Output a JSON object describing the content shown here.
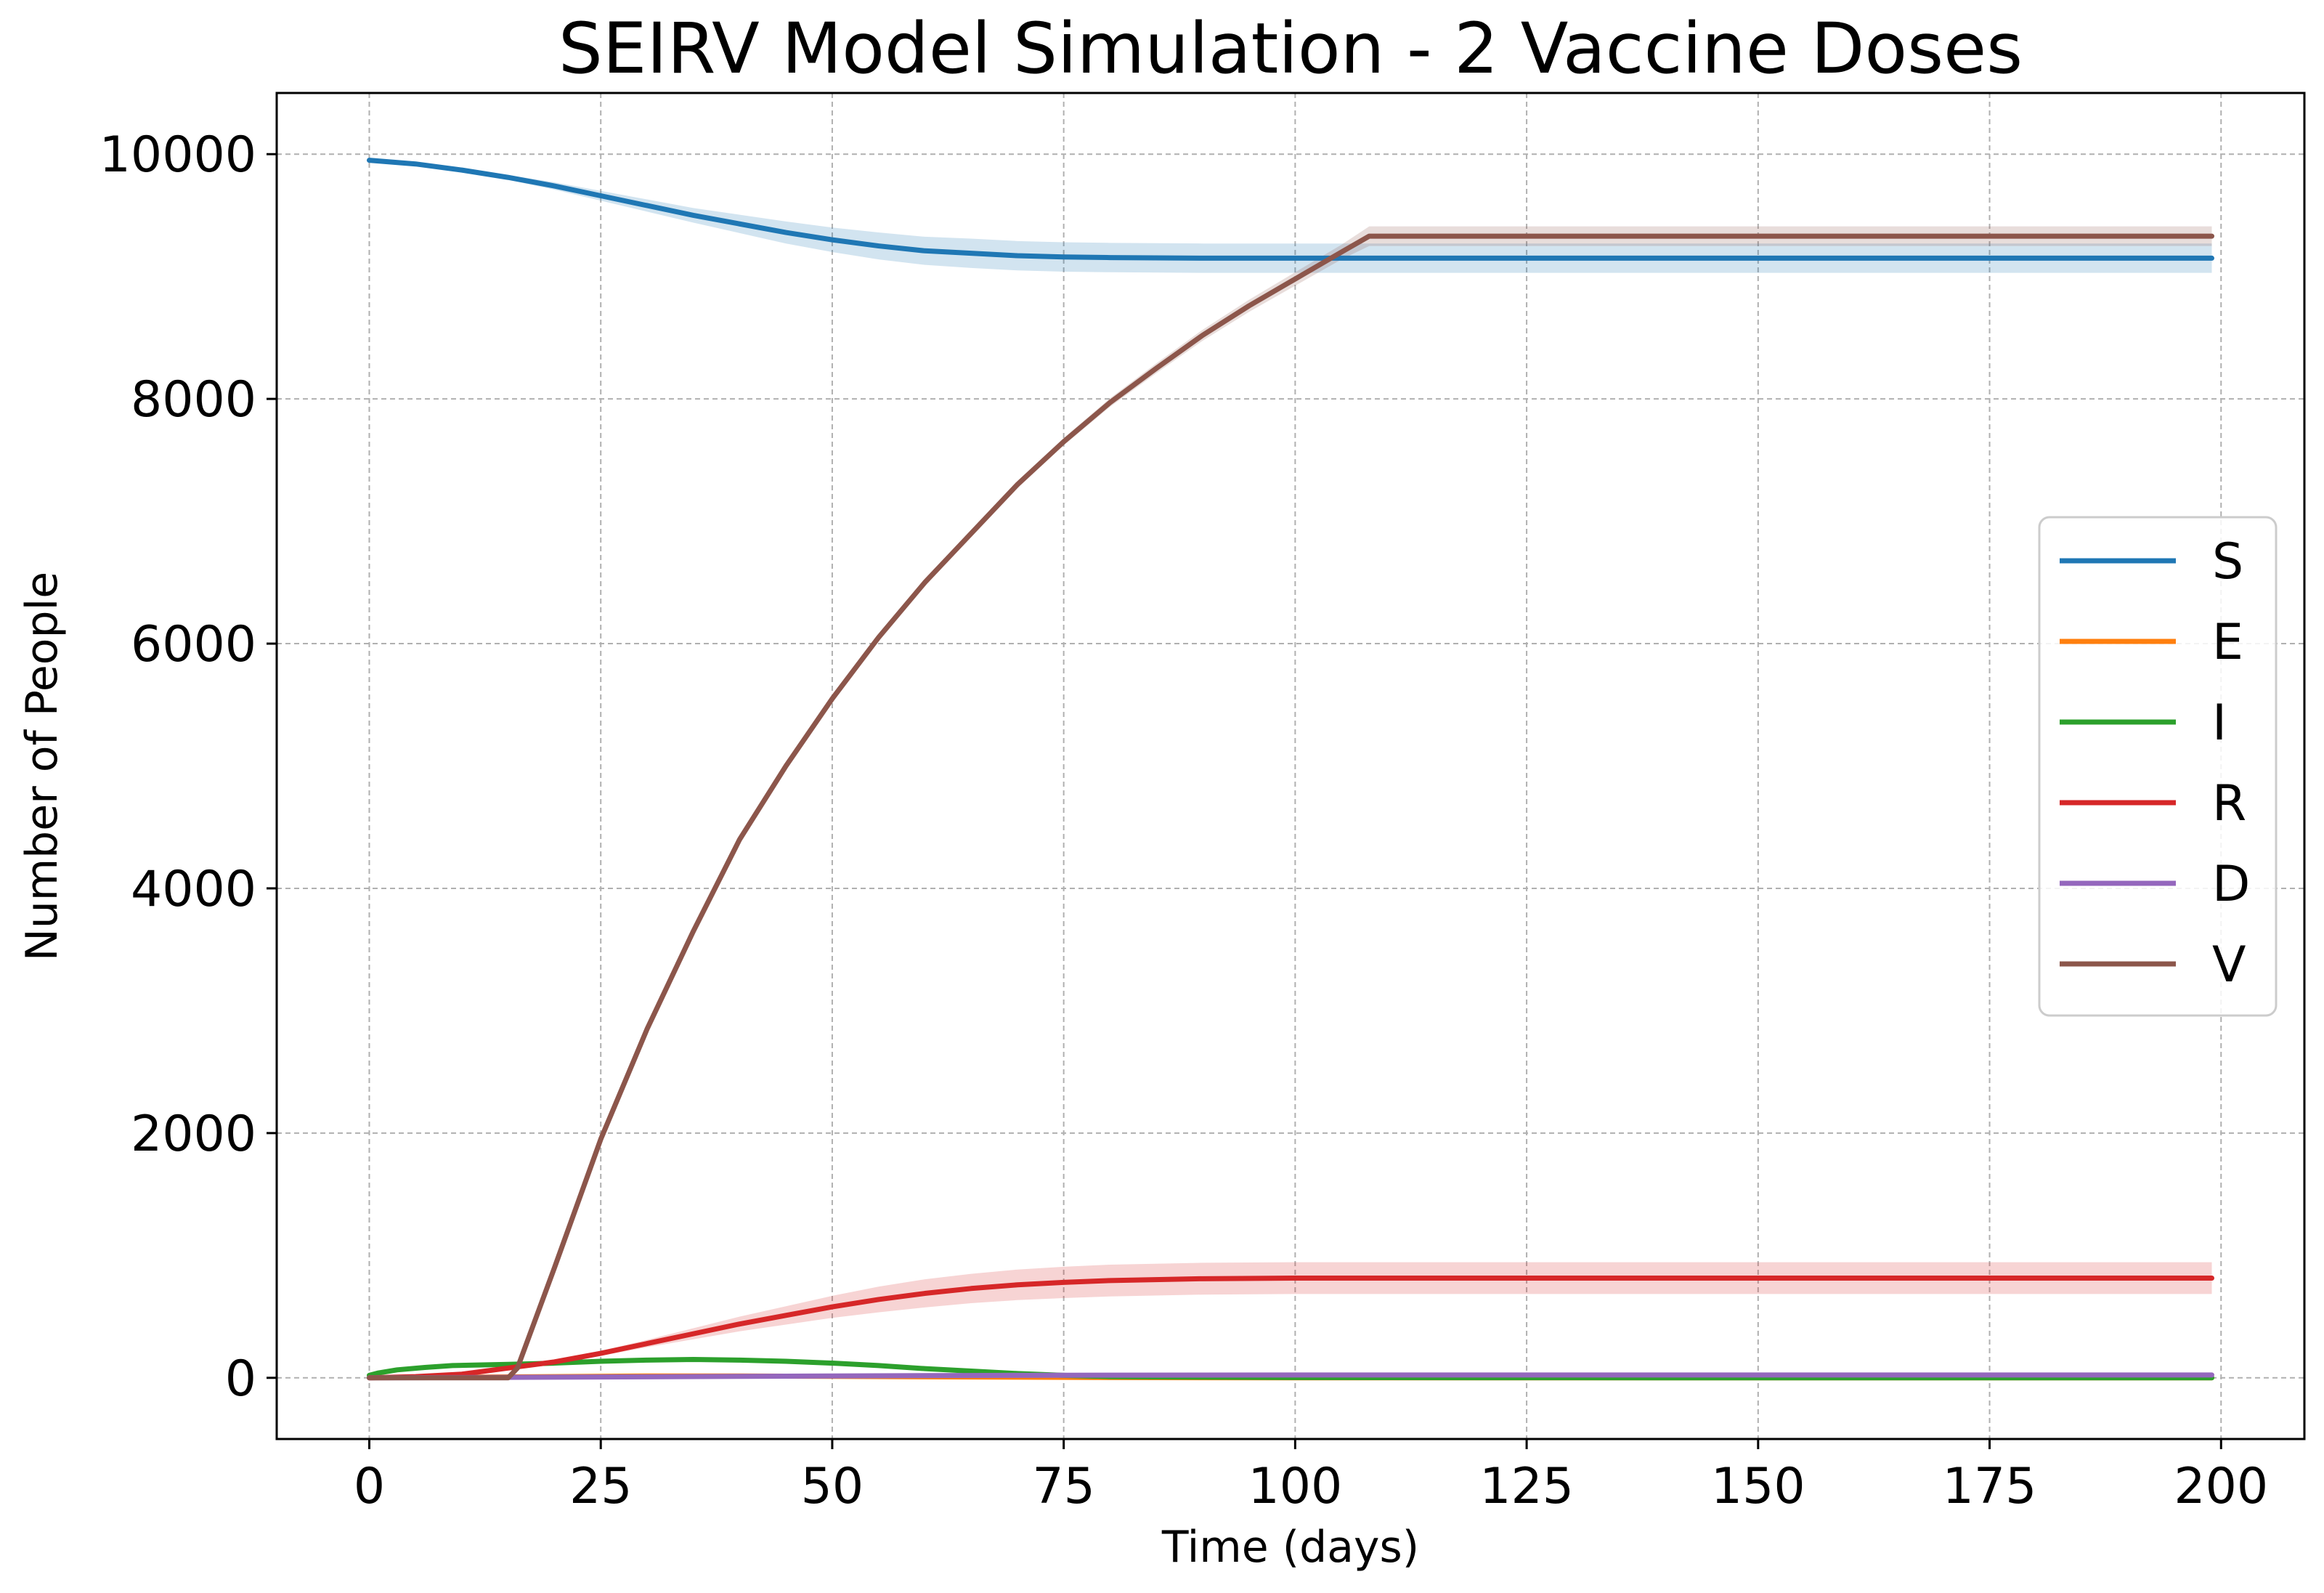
{
  "chart_data": {
    "type": "line",
    "title": "SEIRV Model Simulation - 2 Vaccine Doses",
    "xlabel": "Time (days)",
    "ylabel": "Number of People",
    "xlim": [
      -10,
      209
    ],
    "ylim": [
      -500,
      10500
    ],
    "xticks": [
      0,
      25,
      50,
      75,
      100,
      125,
      150,
      175,
      200
    ],
    "yticks": [
      0,
      2000,
      4000,
      6000,
      8000,
      10000
    ],
    "grid": true,
    "legend_position": "center-right",
    "series": [
      {
        "name": "S",
        "color": "#1f77b4",
        "x": [
          0,
          5,
          10,
          15,
          20,
          25,
          30,
          35,
          40,
          45,
          50,
          55,
          60,
          65,
          70,
          75,
          80,
          90,
          100,
          120,
          150,
          199
        ],
        "y": [
          9950,
          9920,
          9870,
          9810,
          9740,
          9660,
          9580,
          9500,
          9430,
          9360,
          9300,
          9250,
          9210,
          9190,
          9170,
          9160,
          9155,
          9150,
          9150,
          9150,
          9150,
          9150
        ],
        "band": [
          0,
          0,
          10,
          20,
          30,
          40,
          50,
          60,
          75,
          90,
          100,
          110,
          115,
          120,
          120,
          120,
          120,
          120,
          120,
          120,
          120,
          120
        ]
      },
      {
        "name": "E",
        "color": "#ff7f0e",
        "x": [
          0,
          10,
          20,
          30,
          40,
          50,
          60,
          70,
          80,
          100,
          150,
          199
        ],
        "y": [
          0,
          5,
          10,
          15,
          15,
          12,
          8,
          5,
          2,
          0,
          0,
          0
        ],
        "band": [
          0,
          0,
          0,
          0,
          0,
          0,
          0,
          0,
          0,
          0,
          0,
          0
        ]
      },
      {
        "name": "I",
        "color": "#2ca02c",
        "x": [
          0,
          1,
          3,
          6,
          9,
          15,
          20,
          25,
          30,
          35,
          40,
          45,
          50,
          55,
          60,
          65,
          70,
          75,
          80,
          90,
          100,
          150,
          199
        ],
        "y": [
          20,
          40,
          65,
          85,
          100,
          110,
          120,
          135,
          145,
          150,
          145,
          135,
          120,
          100,
          75,
          55,
          35,
          20,
          10,
          5,
          2,
          0,
          0
        ],
        "band": [
          0,
          0,
          0,
          0,
          0,
          0,
          0,
          0,
          0,
          0,
          0,
          0,
          0,
          0,
          0,
          0,
          0,
          0,
          0,
          0,
          0,
          0,
          0
        ]
      },
      {
        "name": "R",
        "color": "#d62728",
        "x": [
          0,
          5,
          10,
          15,
          20,
          25,
          30,
          35,
          40,
          45,
          50,
          55,
          60,
          65,
          70,
          75,
          80,
          90,
          100,
          120,
          150,
          199
        ],
        "y": [
          0,
          10,
          30,
          80,
          130,
          200,
          280,
          360,
          440,
          510,
          580,
          640,
          690,
          730,
          760,
          780,
          795,
          810,
          815,
          815,
          815,
          815
        ],
        "band": [
          0,
          0,
          2,
          5,
          10,
          20,
          30,
          45,
          60,
          75,
          90,
          105,
          115,
          120,
          125,
          128,
          130,
          130,
          130,
          130,
          130,
          130
        ]
      },
      {
        "name": "D",
        "color": "#9467bd",
        "x": [
          0,
          10,
          20,
          30,
          40,
          50,
          60,
          70,
          80,
          100,
          150,
          199
        ],
        "y": [
          0,
          2,
          5,
          8,
          12,
          15,
          18,
          20,
          22,
          23,
          23,
          23
        ],
        "band": [
          0,
          0,
          0,
          0,
          0,
          0,
          0,
          0,
          0,
          0,
          0,
          0
        ]
      },
      {
        "name": "V",
        "color": "#8c564b",
        "x": [
          0,
          15,
          16,
          20,
          25,
          30,
          35,
          40,
          45,
          50,
          55,
          60,
          65,
          70,
          75,
          80,
          85,
          90,
          95,
          100,
          105,
          108,
          150,
          199
        ],
        "y": [
          0,
          0,
          80,
          900,
          1950,
          2850,
          3650,
          4400,
          5000,
          5550,
          6050,
          6500,
          6900,
          7300,
          7650,
          7970,
          8250,
          8520,
          8760,
          8980,
          9200,
          9330,
          9330,
          9330
        ],
        "band": [
          0,
          0,
          0,
          5,
          10,
          10,
          15,
          15,
          20,
          20,
          20,
          25,
          25,
          30,
          30,
          35,
          40,
          45,
          50,
          55,
          60,
          80,
          80,
          80
        ]
      }
    ]
  }
}
